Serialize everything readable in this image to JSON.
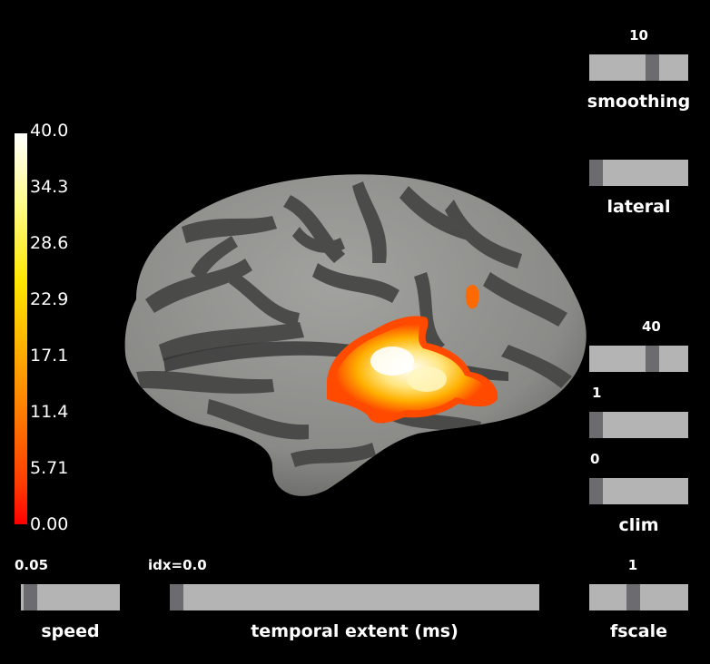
{
  "colorbar": {
    "ticks": [
      "40.0",
      "34.3",
      "28.6",
      "22.9",
      "17.1",
      "11.4",
      "5.71",
      "0.00"
    ]
  },
  "sliders": {
    "smoothing": {
      "label": "smoothing",
      "value": "10",
      "fraction": 0.57
    },
    "lateral": {
      "label": "lateral",
      "value": "",
      "fraction": 0.0
    },
    "clim_max": {
      "value": "40",
      "fraction": 0.57
    },
    "clim_mid": {
      "value": "1",
      "fraction": 0.0
    },
    "clim_min": {
      "value": "0",
      "fraction": 0.0
    },
    "clim": {
      "label": "clim"
    },
    "speed": {
      "label": "speed",
      "value": "0.05",
      "fraction": 0.03
    },
    "temporal": {
      "label": "temporal extent (ms)",
      "value": "idx=0.0",
      "fraction": 0.0
    },
    "fscale": {
      "label": "fscale",
      "value": "1",
      "fraction": 0.4
    }
  },
  "colors": {
    "background": "#000000",
    "slider_track": "#b4b4b4",
    "slider_knob": "#6c6c70",
    "sulci": "#4a4a4a",
    "gyri": "#8e8e8c",
    "activation_core": "#ffffff",
    "activation_edge": "#ff3a00"
  }
}
